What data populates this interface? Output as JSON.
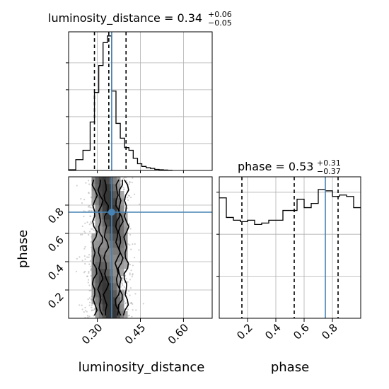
{
  "chart_data": {
    "type": "corner",
    "truth_color": "#4682b4",
    "hist_color": "#000000",
    "grid": true,
    "parameters": [
      {
        "name": "luminosity_distance",
        "axis_label": "luminosity_distance",
        "title_prefix": "luminosity_distance = 0.34",
        "title_plus": "+0.06",
        "title_minus": "−0.05",
        "range": [
          0.2,
          0.7
        ],
        "tick_values": [
          0.3,
          0.45,
          0.6
        ],
        "tick_labels": [
          "0.30",
          "0.45",
          "0.60"
        ],
        "truth": 0.35,
        "quantiles": [
          0.29,
          0.34,
          0.4
        ],
        "bin_edges": [
          0.2,
          0.225,
          0.25,
          0.275,
          0.29,
          0.305,
          0.32,
          0.335,
          0.35,
          0.365,
          0.38,
          0.395,
          0.41,
          0.425,
          0.44,
          0.455,
          0.47,
          0.485,
          0.5,
          0.515,
          0.53,
          0.545,
          0.56
        ],
        "hist_values": [
          0.005,
          0.08,
          0.15,
          0.36,
          0.58,
          0.78,
          0.95,
          1.0,
          0.59,
          0.35,
          0.24,
          0.17,
          0.15,
          0.09,
          0.05,
          0.03,
          0.02,
          0.015,
          0.008,
          0.005,
          0.003,
          0.001
        ]
      },
      {
        "name": "phase",
        "axis_label": "phase",
        "title_prefix": "phase = 0.53",
        "title_plus": "+0.31",
        "title_minus": "−0.37",
        "range": [
          0.0,
          1.0
        ],
        "tick_values": [
          0.2,
          0.4,
          0.6,
          0.8
        ],
        "tick_labels": [
          "0.2",
          "0.4",
          "0.6",
          "0.8"
        ],
        "truth": 0.75,
        "quantiles": [
          0.16,
          0.53,
          0.84
        ],
        "bin_edges": [
          0.0,
          0.05,
          0.1,
          0.15,
          0.2,
          0.25,
          0.3,
          0.35,
          0.4,
          0.45,
          0.5,
          0.55,
          0.6,
          0.65,
          0.7,
          0.75,
          0.8,
          0.85,
          0.9,
          0.95,
          1.0
        ],
        "hist_values": [
          0.86,
          0.72,
          0.7,
          0.69,
          0.7,
          0.67,
          0.68,
          0.7,
          0.7,
          0.77,
          0.77,
          0.85,
          0.79,
          0.82,
          0.92,
          0.91,
          0.87,
          0.88,
          0.87,
          0.79
        ]
      }
    ],
    "scatter": {
      "x_param": "luminosity_distance",
      "y_param": "phase",
      "truth_point": [
        0.35,
        0.75
      ],
      "x_center": 0.34,
      "x_sigma": 0.045,
      "density_levels": 4,
      "contour_x_quantiles": [
        0.29,
        0.31,
        0.33,
        0.37,
        0.38,
        0.4
      ]
    }
  }
}
